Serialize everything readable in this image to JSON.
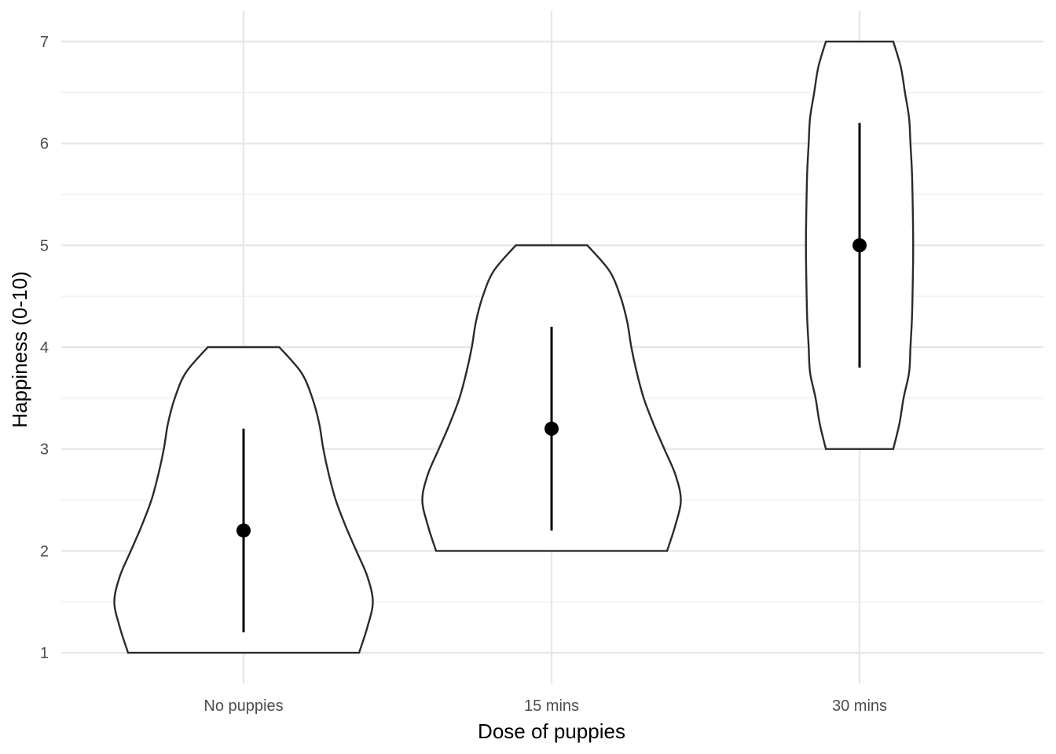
{
  "chart_data": {
    "type": "violin",
    "xlabel": "Dose of puppies",
    "ylabel": "Happiness (0-10)",
    "categories": [
      "No puppies",
      "15 mins",
      "30 mins"
    ],
    "ylim": [
      0.7,
      7.3
    ],
    "yticks": [
      1,
      2,
      3,
      4,
      5,
      6,
      7
    ],
    "grid": true,
    "series": [
      {
        "category": "No puppies",
        "min": 1,
        "max": 4,
        "mean": 2.2,
        "ci_low": 1.2,
        "ci_high": 3.2,
        "density": [
          [
            1.0,
            0.84
          ],
          [
            1.25,
            0.9
          ],
          [
            1.5,
            0.94
          ],
          [
            1.75,
            0.9
          ],
          [
            2.0,
            0.82
          ],
          [
            2.25,
            0.74
          ],
          [
            2.5,
            0.67
          ],
          [
            2.75,
            0.62
          ],
          [
            3.0,
            0.58
          ],
          [
            3.25,
            0.55
          ],
          [
            3.5,
            0.5
          ],
          [
            3.75,
            0.42
          ],
          [
            4.0,
            0.26
          ]
        ]
      },
      {
        "category": "15 mins",
        "min": 2,
        "max": 5,
        "mean": 3.2,
        "ci_low": 2.2,
        "ci_high": 4.2,
        "density": [
          [
            2.0,
            0.84
          ],
          [
            2.25,
            0.9
          ],
          [
            2.5,
            0.94
          ],
          [
            2.75,
            0.9
          ],
          [
            3.0,
            0.82
          ],
          [
            3.25,
            0.74
          ],
          [
            3.5,
            0.67
          ],
          [
            3.75,
            0.62
          ],
          [
            4.0,
            0.58
          ],
          [
            4.25,
            0.55
          ],
          [
            4.5,
            0.5
          ],
          [
            4.75,
            0.42
          ],
          [
            5.0,
            0.26
          ]
        ]
      },
      {
        "category": "30 mins",
        "min": 3,
        "max": 7,
        "mean": 5.0,
        "ci_low": 3.8,
        "ci_high": 6.2,
        "density": [
          [
            3.0,
            0.245
          ],
          [
            3.25,
            0.29
          ],
          [
            3.5,
            0.32
          ],
          [
            3.75,
            0.36
          ],
          [
            4.0,
            0.37
          ],
          [
            4.25,
            0.38
          ],
          [
            4.5,
            0.385
          ],
          [
            5.0,
            0.39
          ],
          [
            5.5,
            0.385
          ],
          [
            5.75,
            0.38
          ],
          [
            6.0,
            0.37
          ],
          [
            6.25,
            0.36
          ],
          [
            6.5,
            0.33
          ],
          [
            6.75,
            0.3
          ],
          [
            7.0,
            0.245
          ]
        ]
      }
    ]
  }
}
